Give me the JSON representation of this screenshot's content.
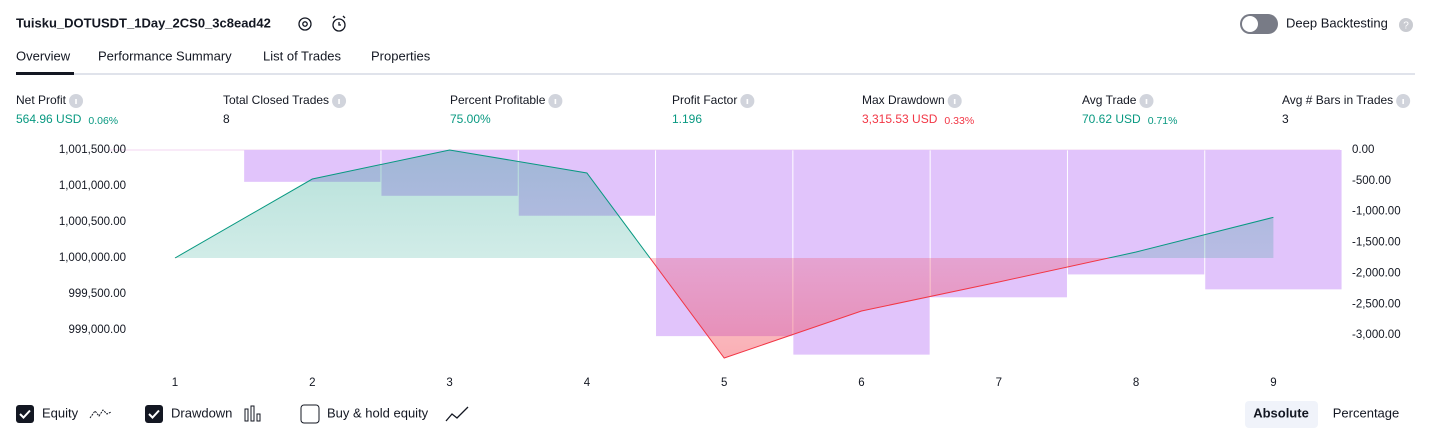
{
  "header": {
    "title": "Tuisku_DOTUSDT_1Day_2CS0_3c8ead42",
    "deep_backtesting": "Deep Backtesting"
  },
  "tabs": [
    "Overview",
    "Performance Summary",
    "List of Trades",
    "Properties"
  ],
  "metrics": [
    {
      "label": "Net Profit",
      "value": "564.96 USD",
      "percent": "0.06%"
    },
    {
      "label": "Total Closed Trades",
      "value": "8"
    },
    {
      "label": "Percent Profitable",
      "value": "75.00%"
    },
    {
      "label": "Profit Factor",
      "value": "1.196"
    },
    {
      "label": "Max Drawdown",
      "value": "3,315.53 USD",
      "percent": "0.33%"
    },
    {
      "label": "Avg Trade",
      "value": "70.62 USD",
      "percent": "0.71%"
    },
    {
      "label": "Avg # Bars in Trades",
      "value": "3"
    }
  ],
  "chart_data": {
    "type": "equity",
    "categories": [
      "1",
      "2",
      "3",
      "4",
      "5",
      "6",
      "7",
      "8",
      "9"
    ],
    "series": [
      {
        "name": "Equity",
        "color": "#089981",
        "negative_color": "#f23645",
        "values": [
          1000000,
          1001097,
          1001500,
          1001181,
          998611,
          999264,
          999667,
          1000083,
          1000564.96
        ]
      },
      {
        "name": "Drawdown",
        "color": "#e1c4fb",
        "axis": "y2",
        "values": [
          0,
          -516,
          -742,
          -1065,
          -3016,
          -3315.53,
          -2387,
          -2016,
          -2258
        ]
      }
    ],
    "ylim": [
      998500,
      1001500
    ],
    "yticks": [
      {
        "value": 1001500,
        "label": "1,001,500.00"
      },
      {
        "value": 1001000,
        "label": "1,001,000.00"
      },
      {
        "value": 1000500,
        "label": "1,000,500.00"
      },
      {
        "value": 1000000,
        "label": "1,000,000.00"
      },
      {
        "value": 999500,
        "label": "999,500.00"
      },
      {
        "value": 999000,
        "label": "999,000.00"
      }
    ],
    "y2lim": [
      -3500,
      0
    ],
    "y2ticks": [
      {
        "value": 0,
        "label": "0.00"
      },
      {
        "value": -500,
        "label": "-500.00"
      },
      {
        "value": -1000,
        "label": "-1,000.00"
      },
      {
        "value": -1500,
        "label": "-1,500.00"
      },
      {
        "value": -2000,
        "label": "-2,000.00"
      },
      {
        "value": -2500,
        "label": "-2,500.00"
      },
      {
        "value": -3000,
        "label": "-3,000.00"
      }
    ]
  },
  "footer": {
    "buy_hold": "Buy & hold equity",
    "modes": [
      "Absolute",
      "Percentage"
    ]
  }
}
